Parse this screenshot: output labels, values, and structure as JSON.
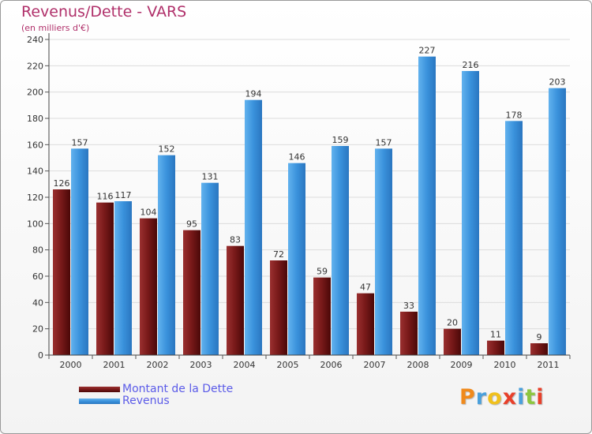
{
  "chart_data": {
    "type": "bar",
    "title": "Revenus/Dette - VARS",
    "subtitle": "(en milliers d'€)",
    "categories": [
      "2000",
      "2001",
      "2002",
      "2003",
      "2004",
      "2005",
      "2006",
      "2007",
      "2008",
      "2009",
      "2010",
      "2011"
    ],
    "series": [
      {
        "name": "Montant de la Dette",
        "color": "#7a1a1a",
        "values": [
          126,
          116,
          104,
          95,
          83,
          72,
          59,
          47,
          33,
          20,
          11,
          9
        ]
      },
      {
        "name": "Revenus",
        "color": "#3a92dc",
        "values": [
          157,
          117,
          152,
          131,
          194,
          146,
          159,
          157,
          227,
          216,
          178,
          203
        ]
      }
    ],
    "ylim": [
      0,
      240
    ],
    "yticks": [
      0,
      20,
      40,
      60,
      80,
      100,
      120,
      140,
      160,
      180,
      200,
      220,
      240
    ],
    "grid": true,
    "legend_position": "bottom-left"
  },
  "logo": {
    "text": "Proxiti",
    "colors": [
      "#f08a1c",
      "#4aa0dc",
      "#f0c01c",
      "#e8402a",
      "#4aa0dc",
      "#8dc63f",
      "#e8402a"
    ]
  }
}
